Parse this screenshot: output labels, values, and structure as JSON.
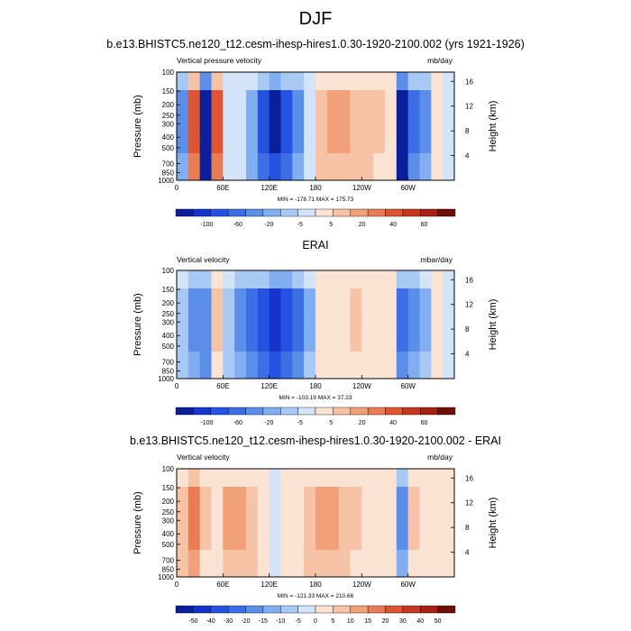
{
  "figure": {
    "title": "DJF"
  },
  "chart_data": [
    {
      "type": "heatmap",
      "title": "b.e13.BHISTC5.ne120_t12.cesm-ihesp-hires1.0.30-1920-2100.002 (yrs 1921-1926)",
      "left_label": "Vertical pressure velocity",
      "right_label": "mb/day",
      "ylabel": "Pressure (mb)",
      "y2label": "Height (km)",
      "x_ticks": [
        "0",
        "60E",
        "120E",
        "180",
        "120W",
        "60W"
      ],
      "y_ticks": [
        "100",
        "150",
        "200",
        "250",
        "300",
        "400",
        "500",
        "700",
        "850",
        "1000"
      ],
      "y2_ticks": [
        "16",
        "12",
        "8",
        "4"
      ],
      "min_max": "MIN = -178.71  MAX = 175.73",
      "colorbar_labels": [
        "-100",
        "-60",
        "-20",
        "-5",
        "5",
        "20",
        "40",
        "60"
      ],
      "colorbar_colors": [
        "#0b1f9c",
        "#1535cc",
        "#2552e0",
        "#3d6ee6",
        "#5b8ee8",
        "#80aef0",
        "#a9c9f5",
        "#d3e4f9",
        "#fbe3d4",
        "#f7c3a6",
        "#f2a07a",
        "#ea7c55",
        "#dd5533",
        "#c6381e",
        "#a62114",
        "#6e0f0a"
      ],
      "profile": [
        {
          "lon": 0,
          "v": -40
        },
        {
          "lon": 15,
          "v": 50
        },
        {
          "lon": 30,
          "v": -120
        },
        {
          "lon": 45,
          "v": 60
        },
        {
          "lon": 60,
          "v": -10
        },
        {
          "lon": 75,
          "v": -5
        },
        {
          "lon": 90,
          "v": -35
        },
        {
          "lon": 105,
          "v": -70
        },
        {
          "lon": 120,
          "v": -90
        },
        {
          "lon": 135,
          "v": -70
        },
        {
          "lon": 150,
          "v": -40
        },
        {
          "lon": 165,
          "v": -5
        },
        {
          "lon": 180,
          "v": 20
        },
        {
          "lon": 195,
          "v": 25
        },
        {
          "lon": 210,
          "v": 25
        },
        {
          "lon": 225,
          "v": 22
        },
        {
          "lon": 240,
          "v": 18
        },
        {
          "lon": 255,
          "v": 15
        },
        {
          "lon": 270,
          "v": 5
        },
        {
          "lon": 285,
          "v": -120
        },
        {
          "lon": 300,
          "v": -60
        },
        {
          "lon": 315,
          "v": -40
        },
        {
          "lon": 330,
          "v": 10
        },
        {
          "lon": 345,
          "v": -5
        },
        {
          "lon": 360,
          "v": -30
        }
      ]
    },
    {
      "type": "heatmap",
      "title": "ERAI",
      "left_label": "Vertical velocity",
      "right_label": "mbar/day",
      "ylabel": "Pressure (mb)",
      "y2label": "Height (km)",
      "x_ticks": [
        "0",
        "60E",
        "120E",
        "180",
        "120W",
        "60W"
      ],
      "y_ticks": [
        "100",
        "150",
        "200",
        "250",
        "300",
        "400",
        "500",
        "700",
        "850",
        "1000"
      ],
      "y2_ticks": [
        "16",
        "12",
        "8",
        "4"
      ],
      "min_max": "MIN = -103.19  MAX = 37.23",
      "colorbar_labels": [
        "-100",
        "-60",
        "-20",
        "-5",
        "5",
        "20",
        "40",
        "60"
      ],
      "colorbar_colors": [
        "#0b1f9c",
        "#1535cc",
        "#2552e0",
        "#3d6ee6",
        "#5b8ee8",
        "#80aef0",
        "#a9c9f5",
        "#d3e4f9",
        "#fbe3d4",
        "#f7c3a6",
        "#f2a07a",
        "#ea7c55",
        "#dd5533",
        "#c6381e",
        "#a62114",
        "#6e0f0a"
      ],
      "profile": [
        {
          "lon": 0,
          "v": -20
        },
        {
          "lon": 15,
          "v": -40
        },
        {
          "lon": 30,
          "v": -50
        },
        {
          "lon": 45,
          "v": 15
        },
        {
          "lon": 60,
          "v": -25
        },
        {
          "lon": 75,
          "v": -40
        },
        {
          "lon": 90,
          "v": -55
        },
        {
          "lon": 105,
          "v": -70
        },
        {
          "lon": 120,
          "v": -80
        },
        {
          "lon": 135,
          "v": -75
        },
        {
          "lon": 150,
          "v": -60
        },
        {
          "lon": 165,
          "v": -30
        },
        {
          "lon": 180,
          "v": 5
        },
        {
          "lon": 195,
          "v": 10
        },
        {
          "lon": 210,
          "v": 12
        },
        {
          "lon": 225,
          "v": 14
        },
        {
          "lon": 240,
          "v": 12
        },
        {
          "lon": 255,
          "v": 10
        },
        {
          "lon": 270,
          "v": 5
        },
        {
          "lon": 285,
          "v": -60
        },
        {
          "lon": 300,
          "v": -40
        },
        {
          "lon": 315,
          "v": -30
        },
        {
          "lon": 330,
          "v": 5
        },
        {
          "lon": 345,
          "v": -5
        },
        {
          "lon": 360,
          "v": -15
        }
      ]
    },
    {
      "type": "heatmap",
      "title": "b.e13.BHISTC5.ne120_t12.cesm-ihesp-hires1.0.30-1920-2100.002 - ERAI",
      "left_label": "Vertical velocity",
      "right_label": "mb/day",
      "ylabel": "Pressure (mb)",
      "y2label": "Height (km)",
      "x_ticks": [
        "0",
        "60E",
        "120E",
        "180",
        "120W",
        "60W"
      ],
      "y_ticks": [
        "100",
        "150",
        "200",
        "250",
        "300",
        "400",
        "500",
        "700",
        "850",
        "1000"
      ],
      "y2_ticks": [
        "16",
        "12",
        "8",
        "4"
      ],
      "min_max": "MIN = -121.33  MAX = 210.66",
      "colorbar_labels": [
        "-50",
        "-40",
        "-30",
        "-20",
        "-15",
        "-10",
        "-5",
        "0",
        "5",
        "10",
        "15",
        "20",
        "30",
        "40",
        "50"
      ],
      "colorbar_colors": [
        "#0b1f9c",
        "#1535cc",
        "#2552e0",
        "#3d6ee6",
        "#5b8ee8",
        "#80aef0",
        "#a9c9f5",
        "#d3e4f9",
        "#fbe3d4",
        "#f7c3a6",
        "#f2a07a",
        "#ea7c55",
        "#dd5533",
        "#c6381e",
        "#a62114",
        "#6e0f0a"
      ],
      "profile": [
        {
          "lon": 0,
          "v": 20
        },
        {
          "lon": 15,
          "v": 45
        },
        {
          "lon": 30,
          "v": 15
        },
        {
          "lon": 45,
          "v": 10
        },
        {
          "lon": 60,
          "v": 30
        },
        {
          "lon": 75,
          "v": 25
        },
        {
          "lon": 90,
          "v": 20
        },
        {
          "lon": 105,
          "v": 10
        },
        {
          "lon": 120,
          "v": -10
        },
        {
          "lon": 135,
          "v": 5
        },
        {
          "lon": 150,
          "v": 10
        },
        {
          "lon": 165,
          "v": 20
        },
        {
          "lon": 180,
          "v": 30
        },
        {
          "lon": 195,
          "v": 25
        },
        {
          "lon": 210,
          "v": 20
        },
        {
          "lon": 225,
          "v": 15
        },
        {
          "lon": 240,
          "v": 12
        },
        {
          "lon": 255,
          "v": 10
        },
        {
          "lon": 270,
          "v": 5
        },
        {
          "lon": 285,
          "v": -40
        },
        {
          "lon": 300,
          "v": 15
        },
        {
          "lon": 315,
          "v": 10
        },
        {
          "lon": 330,
          "v": 8
        },
        {
          "lon": 345,
          "v": 5
        },
        {
          "lon": 360,
          "v": 15
        }
      ]
    }
  ]
}
